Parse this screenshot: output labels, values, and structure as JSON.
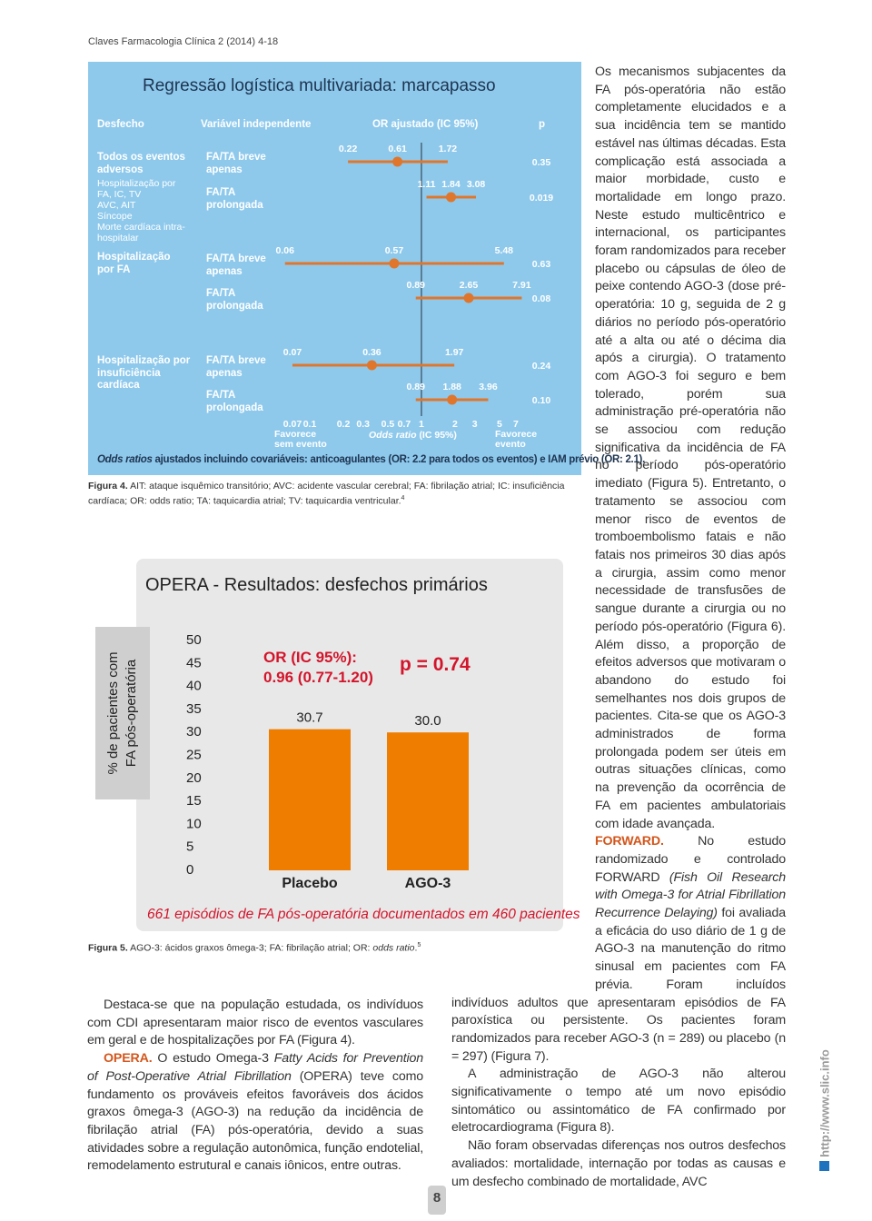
{
  "header": {
    "journal": "Claves Farmacologia Clínica 2 (2014) 4-18"
  },
  "figure4": {
    "title": "Regressão logística multivariada: marcapasso",
    "columns": [
      "Desfecho",
      "Variável independente",
      "OR ajustado (IC 95%)",
      "p"
    ],
    "groups": [
      {
        "label": "Todos os eventos adversos",
        "details": [
          "Hospitalização por FA, IC, TV",
          "AVC, AIT",
          "Síncope",
          "Morte cardíaca intra-hospitalar"
        ]
      },
      {
        "label": "Hospitalização por FA"
      },
      {
        "label": "Hospitalização por insuficiência cardíaca"
      }
    ],
    "rows": [
      {
        "variable": "FA/TA breve apenas",
        "lower": 0.22,
        "or": 0.61,
        "upper": 1.72,
        "p": "0.35"
      },
      {
        "variable": "FA/TA prolongada",
        "lower": 1.11,
        "or": 1.84,
        "upper": 3.08,
        "p": "0.019"
      },
      {
        "variable": "FA/TA breve apenas",
        "lower": 0.06,
        "or": 0.57,
        "upper": 5.48,
        "p": "0.63"
      },
      {
        "variable": "FA/TA prolongada",
        "lower": 0.89,
        "or": 2.65,
        "upper": 7.91,
        "p": "0.08"
      },
      {
        "variable": "FA/TA breve apenas",
        "lower": 0.07,
        "or": 0.36,
        "upper": 1.97,
        "p": "0.24"
      },
      {
        "variable": "FA/TA prolongada",
        "lower": 0.89,
        "or": 1.88,
        "upper": 3.96,
        "p": "0.10"
      }
    ],
    "marker_color": "#e0762c",
    "log_scale": true,
    "xlim": [
      0.05,
      8
    ],
    "xticks": [
      0.07,
      0.1,
      0.2,
      0.3,
      0.5,
      0.7,
      1,
      2,
      3,
      5,
      7
    ],
    "left_label": "Favorece sem evento",
    "x_label_italic": "Odds ratio",
    "x_label": "(IC 95%)",
    "right_label": "Favorece evento",
    "footnote_italic": "Odds ratios",
    "footnote": "ajustados incluindo covariáveis: anticoagulantes (OR: 2.2 para todos os eventos) e IAM prévio (OR: 2.1).",
    "caption_lead": "Figura 4.",
    "caption": "AIT: ataque isquêmico transitório; AVC: acidente vascular cerebral; FA: fibrilação atrial; IC: insuficiência cardíaca; OR: odds ratio; TA: taquicardia atrial; TV: taquicardia ventricular.",
    "caption_ref": "4"
  },
  "figure5": {
    "type": "bar",
    "title": "OPERA - Resultados: desfechos primários",
    "y_label": [
      "% de pacientes com",
      "FA pós-operatória"
    ],
    "categories": [
      "Placebo",
      "AGO-3"
    ],
    "values": [
      30.7,
      30
    ],
    "value_labels": [
      "30.7",
      "30.0"
    ],
    "color": "#ef7d00",
    "ylim": [
      0,
      50
    ],
    "yticks": [
      0,
      5,
      10,
      15,
      20,
      25,
      30,
      35,
      40,
      45,
      50
    ],
    "or_label": "OR (IC 95%):",
    "or_value": "0.96 (0.77-1.20)",
    "p_value": "p = 0.74",
    "note": "661 episódios de FA pós-operatória documentados em 460 pacientes",
    "caption_lead": "Figura 5.",
    "caption": "AGO-3: ácidos graxos ômega-3; FA: fibrilação atrial; OR:",
    "caption_italic": "odds ratio",
    "caption_end": ".",
    "caption_ref": "5"
  },
  "left_column": {
    "paragraph_1": "Destaca-se que na população estudada, os indivíduos com CDI apresentaram maior risco de eventos vasculares em geral e de hospitalizações por FA (Figura 4).",
    "opera_lead": "OPERA.",
    "opera_text_1": "O estudo Omega-3",
    "opera_italic": "Fatty Acids for Prevention of Post-Operative Atrial Fibrillation",
    "opera_text_2": "(OPERA) teve como fundamento os prováveis efeitos favoráveis dos ácidos graxos ômega-3 (AGO-3) na redução da incidência de fibrilação atrial (FA) pós-operatória, devido a suas atividades sobre a regulação autonômica, função endotelial, remodelamento estrutural e canais iônicos, entre outras."
  },
  "right_column": {
    "paragraph_1": "Os mecanismos subjacentes da FA pós-operatória não estão completamente elucidados e a sua incidência tem se mantido estável nas últimas décadas. Esta complicação está associada a maior morbidade, custo e mortalidade em longo prazo. Neste estudo multicêntrico e internacional, os participantes foram randomizados para receber placebo ou cápsulas de óleo de peixe contendo AGO-3 (dose pré-operatória: 10 g, seguida de 2 g diários no período pós-operatório até a alta ou até o décima dia após a cirurgia). O tratamento com AGO-3 foi seguro e bem tolerado, porém sua administração pré-operatória não se associou com redução significativa da incidência de FA no período pós-operatório imediato (Figura 5). Entretanto, o tratamento se associou com menor risco de eventos de tromboembolismo fatais e não fatais nos primeiros 30 dias após a cirurgia, assim como menor necessidade de transfusões de sangue durante a cirurgia ou no período pós-operatório (Figura 6). Além disso, a proporção de efeitos adversos que motivaram o abandono do estudo foi semelhantes nos dois grupos de pacientes. Cita-se que os AGO-3 administrados de forma prolongada podem ser úteis em outras situações clínicas, como na prevenção da ocorrência de FA em pacientes ambulatoriais com idade avançada.",
    "forward_lead": "FORWARD.",
    "forward_text_1": "No estudo randomizado e controlado FORWARD",
    "forward_italic": "(Fish Oil Research with Omega-3 for Atrial Fibrillation Recurrence Delaying)",
    "forward_text_2": "foi avaliada a eficácia do uso diário de 1 g de AGO-3 na manutenção do ritmo sinusal em pacientes com FA prévia. Foram incluídos indivíduos adultos que apresentaram episódios de FA paroxística ou persistente. Os pacientes foram randomizados para receber AGO-3 (n = 289) ou placebo (n = 297) (Figura 7).",
    "paragraph_3": "A administração de AGO-3 não alterou significativamente o tempo até um novo episódio sintomático ou assintomático de FA confirmado por eletrocardiograma (Figura 8).",
    "paragraph_4": "Não foram observadas diferenças nos outros desfechos avaliados: mortalidade, internação por todas as causas e um desfecho combinado de mortalidade, AVC"
  },
  "footer": {
    "page_number": "8",
    "website": "http://www.slic.info"
  }
}
